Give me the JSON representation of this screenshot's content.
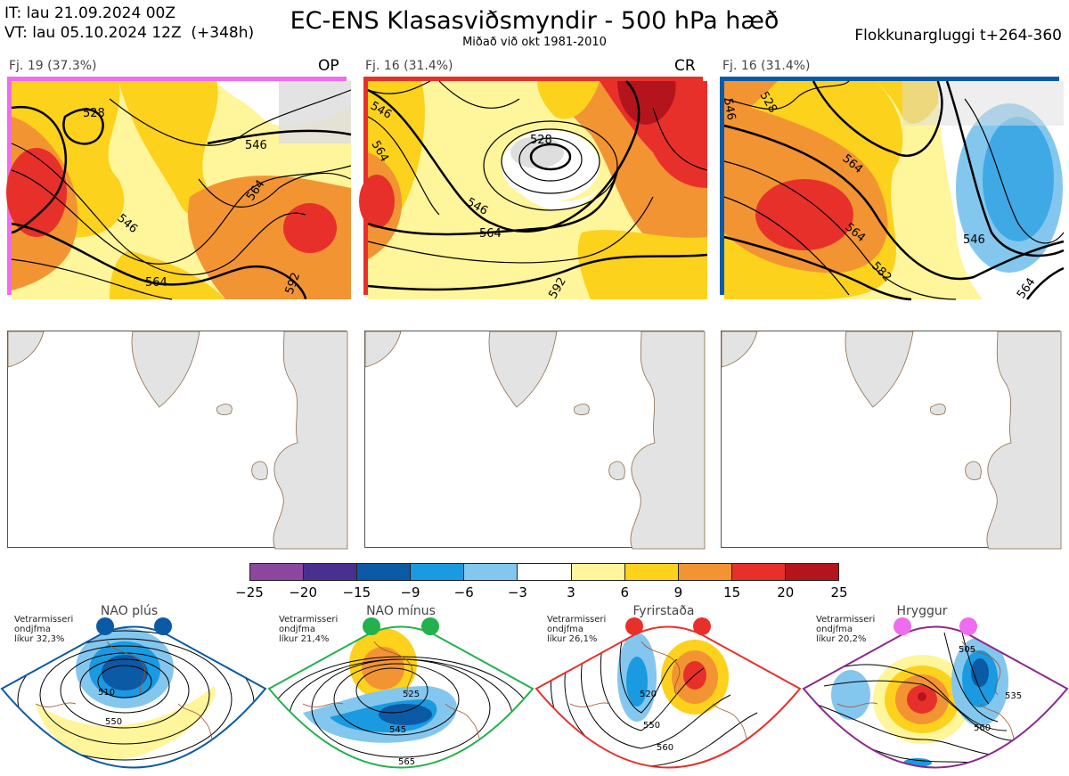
{
  "header": {
    "it_line": "IT: lau 21.09.2024 00Z",
    "vt_line": "VT: lau 05.10.2024 12Z  (+348h)",
    "title": "EC-ENS Klasasviðsmyndir - 500 hPa hæð",
    "subtitle": "Miðað við okt 1981-2010",
    "window": "Flokkunargluggi t+264-360"
  },
  "panels": [
    {
      "label": "Fj. 19 (37.3%)",
      "tag": "OP",
      "border_color": "#ee6cee",
      "contours": [
        "528",
        "546",
        "546",
        "564",
        "564",
        "592"
      ]
    },
    {
      "label": "Fj. 16 (31.4%)",
      "tag": "CR",
      "border_color": "#e8302a",
      "contours": [
        "546",
        "564",
        "528",
        "546",
        "564",
        "592"
      ]
    },
    {
      "label": "Fj. 16 (31.4%)",
      "tag": "",
      "border_color": "#0b5aa6",
      "contours": [
        "546",
        "528",
        "564",
        "546",
        "564",
        "582",
        "564"
      ]
    }
  ],
  "colorbar": {
    "colors": [
      "#8c46a0",
      "#49308f",
      "#0b5aa6",
      "#1a9ae0",
      "#84c7ee",
      "#ffffff",
      "#fff59a",
      "#fdd21c",
      "#f39433",
      "#e8302a",
      "#b4141c"
    ],
    "ticks": [
      "−25",
      "−20",
      "−15",
      "−9",
      "−6",
      "−3",
      "3",
      "6",
      "9",
      "15",
      "20",
      "25"
    ]
  },
  "regimes": [
    {
      "title": "NAO plús",
      "info": [
        "Vetrarmisseri",
        "ondjfma",
        "líkur 32,3%"
      ],
      "dot_color": "#0b5aa6",
      "border_color": "#0b5aa6",
      "contours": [
        "510",
        "550"
      ]
    },
    {
      "title": "NAO mínus",
      "info": [
        "Vetrarmisseri",
        "ondjfma",
        "líkur 21,4%"
      ],
      "dot_color": "#22b14c",
      "border_color": "#22b14c",
      "contours": [
        "525",
        "545",
        "565"
      ]
    },
    {
      "title": "Fyrirstaða",
      "info": [
        "Vetrarmisseri",
        "ondjfma",
        "líkur 26,1%"
      ],
      "dot_color": "#e8302a",
      "border_color": "#e8302a",
      "contours": [
        "520",
        "550",
        "560"
      ]
    },
    {
      "title": "Hryggur",
      "info": [
        "Vetrarmisseri",
        "ondjfma",
        "líkur 20,2%"
      ],
      "dot_color": "#ee6cee",
      "border_color": "#8a2a8a",
      "contours": [
        "505",
        "535",
        "560"
      ]
    }
  ]
}
